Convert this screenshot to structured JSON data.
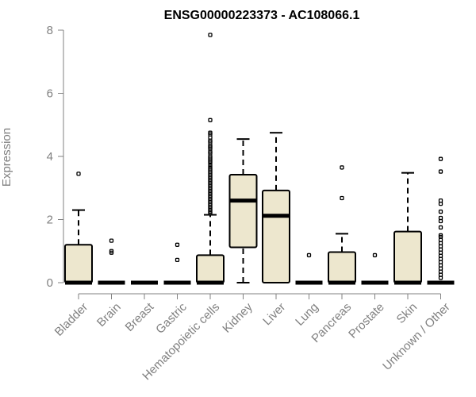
{
  "chart_data": {
    "type": "boxplot",
    "title": "ENSG00000223373 - AC108066.1",
    "xlabel": "",
    "ylabel": "Expression",
    "ylim": [
      0,
      8
    ],
    "yticks": [
      "0",
      "2",
      "4",
      "6",
      "8"
    ],
    "grid": false,
    "legend": "none",
    "box_fill": "#EDE7CE",
    "box_stroke": "#000000",
    "axis_color": "#808080",
    "categories": [
      "Bladder",
      "Brain",
      "Breast",
      "Gastric",
      "Hematopoietic cells",
      "Kidney",
      "Liver",
      "Lung",
      "Pancreas",
      "Prostate",
      "Skin",
      "Unknown / Other"
    ],
    "boxes": [
      {
        "category": "Bladder",
        "whisker_low": 0,
        "q1": 0,
        "median": 0,
        "q3": 1.2,
        "whisker_high": 2.3,
        "outliers": [
          3.45
        ]
      },
      {
        "category": "Brain",
        "whisker_low": 0,
        "q1": 0,
        "median": 0,
        "q3": 0,
        "whisker_high": 0,
        "outliers": [
          1.33,
          1.0,
          0.95
        ]
      },
      {
        "category": "Breast",
        "whisker_low": 0,
        "q1": 0,
        "median": 0,
        "q3": 0,
        "whisker_high": 0,
        "outliers": []
      },
      {
        "category": "Gastric",
        "whisker_low": 0,
        "q1": 0,
        "median": 0,
        "q3": 0,
        "whisker_high": 0,
        "outliers": [
          1.2,
          0.72
        ]
      },
      {
        "category": "Hematopoietic cells",
        "whisker_low": 0,
        "q1": 0,
        "median": 0,
        "q3": 0.87,
        "whisker_high": 2.15,
        "outliers": [
          7.85,
          5.15,
          4.75,
          4.7,
          4.6,
          4.5,
          4.45,
          4.35,
          4.3,
          4.25,
          4.15,
          4.1,
          4.0,
          3.95,
          3.9,
          3.85,
          3.8,
          3.72,
          3.65,
          3.6,
          3.55,
          3.5,
          3.45,
          3.4,
          3.35,
          3.3,
          3.25,
          3.2,
          3.15,
          3.1,
          3.05,
          3.0,
          2.95,
          2.9,
          2.85,
          2.8,
          2.75,
          2.7,
          2.65,
          2.6,
          2.55,
          2.5,
          2.45,
          2.4,
          2.35,
          2.3,
          2.25,
          2.2
        ]
      },
      {
        "category": "Kidney",
        "whisker_low": 0,
        "q1": 1.12,
        "median": 2.6,
        "q3": 3.42,
        "whisker_high": 4.55,
        "outliers": []
      },
      {
        "category": "Liver",
        "whisker_low": 0,
        "q1": 0,
        "median": 2.12,
        "q3": 2.92,
        "whisker_high": 4.75,
        "outliers": []
      },
      {
        "category": "Lung",
        "whisker_low": 0,
        "q1": 0,
        "median": 0,
        "q3": 0,
        "whisker_high": 0,
        "outliers": [
          0.87
        ]
      },
      {
        "category": "Pancreas",
        "whisker_low": 0,
        "q1": 0,
        "median": 0,
        "q3": 0.97,
        "whisker_high": 1.55,
        "outliers": [
          3.65,
          2.68
        ]
      },
      {
        "category": "Prostate",
        "whisker_low": 0,
        "q1": 0,
        "median": 0,
        "q3": 0,
        "whisker_high": 0,
        "outliers": [
          0.87
        ]
      },
      {
        "category": "Skin",
        "whisker_low": 0,
        "q1": 0,
        "median": 0,
        "q3": 1.62,
        "whisker_high": 3.48,
        "outliers": []
      },
      {
        "category": "Unknown / Other",
        "whisker_low": 0,
        "q1": 0,
        "median": 0,
        "q3": 0,
        "whisker_high": 0,
        "outliers": [
          3.92,
          3.52,
          2.6,
          2.5,
          2.25,
          2.05,
          1.95,
          1.75,
          1.5,
          1.45,
          1.35,
          1.25,
          1.15,
          1.05,
          0.95,
          0.85,
          0.75,
          0.65,
          0.55,
          0.45,
          0.35,
          0.25,
          0.15
        ]
      }
    ]
  }
}
